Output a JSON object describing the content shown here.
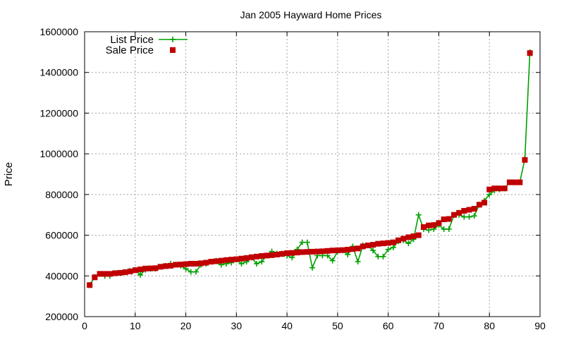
{
  "chart_data": {
    "type": "line",
    "title": "Jan 2005 Hayward Home Prices",
    "xlabel": "",
    "ylabel": "Price",
    "xlim": [
      0,
      90
    ],
    "ylim": [
      200000,
      1600000
    ],
    "xticks": [
      0,
      10,
      20,
      30,
      40,
      50,
      60,
      70,
      80,
      90
    ],
    "yticks": [
      200000,
      400000,
      600000,
      800000,
      1000000,
      1200000,
      1400000,
      1600000
    ],
    "grid": true,
    "legend_position": "top-left",
    "series": [
      {
        "name": "List Price",
        "style": "line+cross",
        "color": "#00a000",
        "x": [
          1,
          2,
          3,
          4,
          5,
          6,
          7,
          8,
          9,
          10,
          11,
          12,
          13,
          14,
          15,
          16,
          17,
          18,
          19,
          20,
          21,
          22,
          23,
          24,
          25,
          26,
          27,
          28,
          29,
          30,
          31,
          32,
          33,
          34,
          35,
          36,
          37,
          38,
          39,
          40,
          41,
          42,
          43,
          44,
          45,
          46,
          47,
          48,
          49,
          50,
          51,
          52,
          53,
          54,
          55,
          56,
          57,
          58,
          59,
          60,
          61,
          62,
          63,
          64,
          65,
          66,
          67,
          68,
          69,
          70,
          71,
          72,
          73,
          74,
          75,
          76,
          77,
          78,
          79,
          80,
          81,
          82,
          83,
          84,
          85,
          86,
          87,
          88
        ],
        "y": [
          355000,
          395000,
          410000,
          400000,
          400000,
          415000,
          415000,
          420000,
          425000,
          430000,
          405000,
          430000,
          435000,
          435000,
          445000,
          450000,
          460000,
          455000,
          450000,
          435000,
          420000,
          420000,
          455000,
          460000,
          470000,
          475000,
          455000,
          460000,
          465000,
          480000,
          460000,
          470000,
          490000,
          460000,
          470000,
          500000,
          520000,
          510000,
          510000,
          500000,
          490000,
          530000,
          565000,
          565000,
          440000,
          500000,
          500000,
          500000,
          475000,
          520000,
          525000,
          505000,
          545000,
          470000,
          550000,
          550000,
          525000,
          495000,
          495000,
          530000,
          540000,
          570000,
          575000,
          560000,
          580000,
          700000,
          630000,
          625000,
          630000,
          650000,
          630000,
          630000,
          700000,
          700000,
          690000,
          690000,
          695000,
          750000,
          770000,
          800000,
          820000,
          825000,
          830000,
          860000,
          860000,
          860000,
          975000,
          1500000
        ]
      },
      {
        "name": "Sale Price",
        "style": "square",
        "color": "#c00000",
        "x": [
          1,
          2,
          3,
          4,
          5,
          6,
          7,
          8,
          9,
          10,
          11,
          12,
          13,
          14,
          15,
          16,
          17,
          18,
          19,
          20,
          21,
          22,
          23,
          24,
          25,
          26,
          27,
          28,
          29,
          30,
          31,
          32,
          33,
          34,
          35,
          36,
          37,
          38,
          39,
          40,
          41,
          42,
          43,
          44,
          45,
          46,
          47,
          48,
          49,
          50,
          51,
          52,
          53,
          54,
          55,
          56,
          57,
          58,
          59,
          60,
          61,
          62,
          63,
          64,
          65,
          66,
          67,
          68,
          69,
          70,
          71,
          72,
          73,
          74,
          75,
          76,
          77,
          78,
          79,
          80,
          81,
          82,
          83,
          84,
          85,
          86,
          87,
          88
        ],
        "y": [
          355000,
          393000,
          410000,
          410000,
          410000,
          413000,
          415000,
          418000,
          422000,
          428000,
          432000,
          436000,
          437000,
          438000,
          445000,
          448000,
          450000,
          455000,
          456000,
          458000,
          460000,
          460000,
          462000,
          465000,
          470000,
          472000,
          475000,
          478000,
          480000,
          482000,
          485000,
          488000,
          492000,
          495000,
          498000,
          500000,
          502000,
          505000,
          508000,
          512000,
          513000,
          515000,
          517000,
          518000,
          519000,
          520000,
          521000,
          523000,
          525000,
          526000,
          527000,
          529000,
          532000,
          535000,
          545000,
          550000,
          553000,
          558000,
          560000,
          562000,
          565000,
          575000,
          583000,
          590000,
          595000,
          600000,
          640000,
          648000,
          650000,
          660000,
          678000,
          680000,
          700000,
          710000,
          720000,
          725000,
          730000,
          750000,
          760000,
          825000,
          830000,
          830000,
          830000,
          860000,
          860000,
          860000,
          970000,
          1495000
        ]
      }
    ]
  }
}
